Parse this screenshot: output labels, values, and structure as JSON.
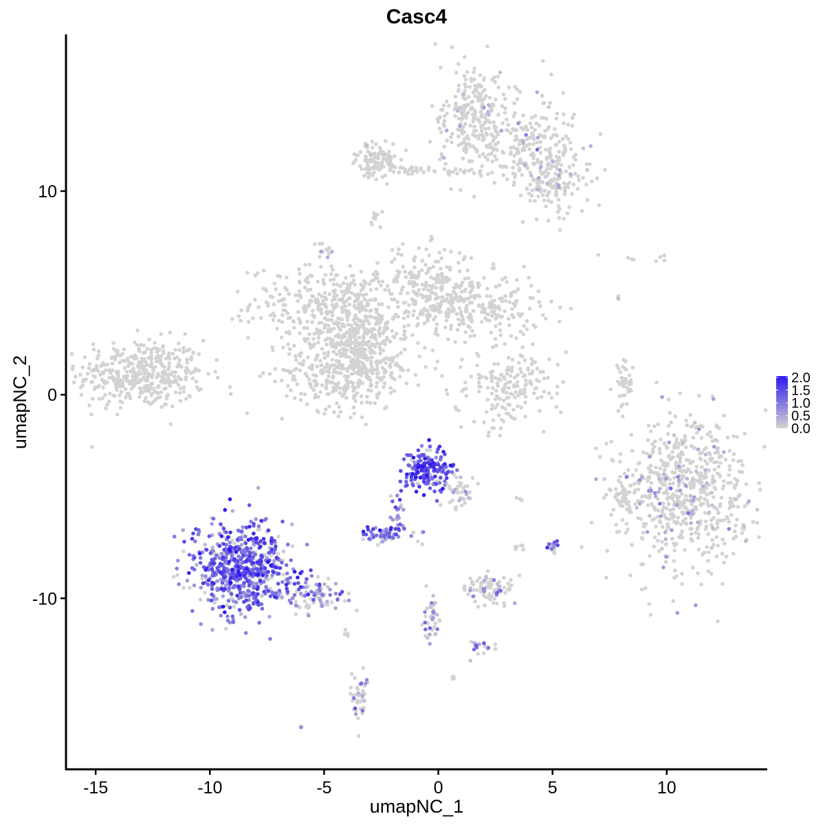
{
  "chart_data": {
    "type": "scatter",
    "title": "Casc4",
    "xlabel": "umapNC_1",
    "ylabel": "umapNC_2",
    "xlim": [
      -16.3,
      14.4
    ],
    "ylim": [
      -18.4,
      17.7
    ],
    "x_ticks": [
      -15,
      -10,
      -5,
      0,
      5,
      10
    ],
    "y_ticks": [
      -10,
      0,
      10
    ],
    "x_tick_labels": [
      "-15",
      "-10",
      "-5",
      "0",
      "5",
      "10"
    ],
    "y_tick_labels": [
      "-10",
      "0",
      "10"
    ],
    "grid": false,
    "legend_position": "right",
    "color_scale": {
      "low_color": "#d3d3d3",
      "high_color": "#2e1aee",
      "min": 0,
      "max": 2.05,
      "ticks": [
        0.0,
        0.5,
        1.0,
        1.5,
        2.0
      ],
      "tick_labels": [
        "0.0",
        "0.5",
        "1.0",
        "1.5",
        "2.0"
      ]
    },
    "clusters": [
      {
        "center": [
          -13.0,
          1.0
        ],
        "spread": [
          1.4,
          0.85
        ],
        "n": 420,
        "expression": 0.0
      },
      {
        "center": [
          -5.0,
          4.5
        ],
        "spread": [
          1.6,
          0.9
        ],
        "n": 260,
        "expression": 0.0
      },
      {
        "center": [
          -3.5,
          3.0
        ],
        "spread": [
          0.9,
          1.2
        ],
        "n": 300,
        "expression": 0.0
      },
      {
        "center": [
          -4.2,
          1.2
        ],
        "spread": [
          1.3,
          1.0
        ],
        "n": 320,
        "expression": 0.0
      },
      {
        "center": [
          -0.5,
          5.5
        ],
        "spread": [
          1.0,
          0.9
        ],
        "n": 180,
        "expression": 0.0
      },
      {
        "center": [
          1.5,
          4.3
        ],
        "spread": [
          1.5,
          0.8
        ],
        "n": 260,
        "expression": 0.0
      },
      {
        "center": [
          -5.0,
          7.2
        ],
        "spread": [
          0.2,
          0.3
        ],
        "n": 15,
        "expression": 0.2
      },
      {
        "center": [
          -1.7,
          1.3
        ],
        "spread": [
          0.6,
          0.4
        ],
        "n": 30,
        "expression": 0.0
      },
      {
        "center": [
          1.5,
          13.5
        ],
        "spread": [
          0.8,
          1.3
        ],
        "n": 260,
        "expression": 0.1
      },
      {
        "center": [
          4.0,
          12.5
        ],
        "spread": [
          1.0,
          1.2
        ],
        "n": 200,
        "expression": 0.15
      },
      {
        "center": [
          5.0,
          10.5
        ],
        "spread": [
          0.8,
          0.9
        ],
        "n": 140,
        "expression": 0.2
      },
      {
        "center": [
          -2.7,
          11.5
        ],
        "spread": [
          0.5,
          0.4
        ],
        "n": 100,
        "expression": 0.05
      },
      {
        "center": [
          -0.5,
          11.0
        ],
        "spread": [
          1.0,
          0.15
        ],
        "n": 40,
        "expression": 0.0
      },
      {
        "center": [
          -2.8,
          8.6
        ],
        "spread": [
          0.2,
          0.25
        ],
        "n": 10,
        "expression": 0.0
      },
      {
        "center": [
          3.2,
          0.3
        ],
        "spread": [
          1.0,
          0.9
        ],
        "n": 180,
        "expression": 0.0
      },
      {
        "center": [
          8.2,
          0.5
        ],
        "spread": [
          0.2,
          0.6
        ],
        "n": 40,
        "expression": 0.0
      },
      {
        "center": [
          10.8,
          -4.8
        ],
        "spread": [
          1.4,
          1.8
        ],
        "n": 650,
        "expression": 0.2
      },
      {
        "center": [
          8.0,
          -5.0
        ],
        "spread": [
          0.3,
          0.4
        ],
        "n": 40,
        "expression": 0.0
      },
      {
        "center": [
          -8.5,
          -8.5
        ],
        "spread": [
          1.1,
          1.2
        ],
        "n": 650,
        "expression": 1.15
      },
      {
        "center": [
          -5.5,
          -9.8
        ],
        "spread": [
          0.8,
          0.4
        ],
        "n": 90,
        "expression": 0.8
      },
      {
        "center": [
          -0.5,
          -3.7
        ],
        "spread": [
          0.5,
          0.5
        ],
        "n": 180,
        "expression": 1.3
      },
      {
        "center": [
          0.8,
          -4.7
        ],
        "spread": [
          0.4,
          0.5
        ],
        "n": 40,
        "expression": 0.4
      },
      {
        "center": [
          -1.8,
          -5.8
        ],
        "spread": [
          0.2,
          0.6
        ],
        "n": 25,
        "expression": 1.1
      },
      {
        "center": [
          -2.5,
          -6.9
        ],
        "spread": [
          0.4,
          0.2
        ],
        "n": 50,
        "expression": 1.05
      },
      {
        "center": [
          2.3,
          -9.5
        ],
        "spread": [
          0.5,
          0.4
        ],
        "n": 90,
        "expression": 0.35
      },
      {
        "center": [
          5.0,
          -7.5
        ],
        "spread": [
          0.12,
          0.15
        ],
        "n": 20,
        "expression": 0.8
      },
      {
        "center": [
          -3.5,
          -14.8
        ],
        "spread": [
          0.2,
          0.6
        ],
        "n": 40,
        "expression": 0.7
      },
      {
        "center": [
          -0.3,
          -11.0
        ],
        "spread": [
          0.2,
          0.6
        ],
        "n": 40,
        "expression": 0.5
      },
      {
        "center": [
          2.0,
          -12.4
        ],
        "spread": [
          0.4,
          0.2
        ],
        "n": 20,
        "expression": 0.6
      },
      {
        "center": [
          -4.0,
          -11.8
        ],
        "spread": [
          0.05,
          0.1
        ],
        "n": 5,
        "expression": 0.3
      },
      {
        "center": [
          -6.0,
          -16.3
        ],
        "spread": [
          0.05,
          0.05
        ],
        "n": 3,
        "expression": 0.5
      },
      {
        "center": [
          0.6,
          -13.9
        ],
        "spread": [
          0.08,
          0.05
        ],
        "n": 4,
        "expression": 0.0
      },
      {
        "center": [
          3.5,
          -5.1
        ],
        "spread": [
          0.1,
          0.05
        ],
        "n": 3,
        "expression": 0.0
      },
      {
        "center": [
          3.5,
          -7.5
        ],
        "spread": [
          0.15,
          0.1
        ],
        "n": 6,
        "expression": 0.0
      },
      {
        "center": [
          -1.0,
          -6.8
        ],
        "spread": [
          0.4,
          0.3
        ],
        "n": 6,
        "expression": 0.5
      },
      {
        "center": [
          7.9,
          4.8
        ],
        "spread": [
          0.05,
          0.1
        ],
        "n": 3,
        "expression": 0.3
      },
      {
        "center": [
          8.4,
          6.7
        ],
        "spread": [
          0.1,
          0.05
        ],
        "n": 3,
        "expression": 0.0
      },
      {
        "center": [
          9.8,
          6.7
        ],
        "spread": [
          0.15,
          0.15
        ],
        "n": 4,
        "expression": 0.0
      },
      {
        "center": [
          7.0,
          6.9
        ],
        "spread": [
          0.05,
          0.05
        ],
        "n": 1,
        "expression": 0.0
      }
    ]
  }
}
